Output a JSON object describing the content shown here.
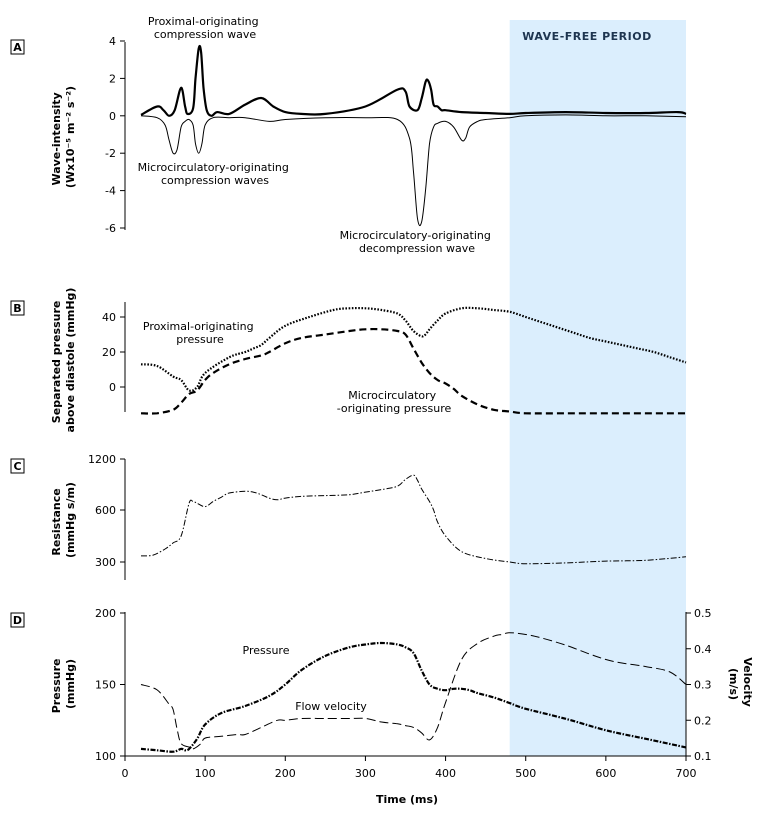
{
  "wave_free_period": {
    "label": "WAVE-FREE PERIOD",
    "start_ms": 480,
    "end_ms": 700,
    "color": "#dbeefd"
  },
  "x_axis": {
    "label": "Time (ms)",
    "ticks": [
      "0",
      "100",
      "200",
      "300",
      "400",
      "500",
      "600",
      "700"
    ],
    "range": [
      0,
      700
    ]
  },
  "panels": {
    "A": {
      "letter": "A",
      "ylabel_line1": "Wave-intensity",
      "ylabel_line2": "(Wx10⁻⁵ m⁻² s⁻²)",
      "ticks": [
        "4",
        "2",
        "0",
        "-2",
        "-4",
        "-6"
      ],
      "annotations": {
        "proximal_wave_1": "Proximal-originating",
        "proximal_wave_2": "compression wave",
        "micro_compression_1": "Microcirculatory-originating",
        "micro_compression_2": "compression waves",
        "micro_decompression_1": "Microcirculatory-originating",
        "micro_decompression_2": "decompression wave"
      }
    },
    "B": {
      "letter": "B",
      "ylabel_line1": "Separated pressure",
      "ylabel_line2": "above diastole (mmHg)",
      "ticks": [
        "40",
        "20",
        "0"
      ],
      "annotations": {
        "proximal_1": "Proximal-originating",
        "proximal_2": "pressure",
        "micro_1": "Microcirculatory",
        "micro_2": "-originating pressure"
      }
    },
    "C": {
      "letter": "C",
      "ylabel_line1": "Resistance",
      "ylabel_line2": "(mmHg s/m)",
      "ticks": [
        "1200",
        "600",
        "300"
      ]
    },
    "D": {
      "letter": "D",
      "ylabel_line1": "Pressure",
      "ylabel_line2": "(mmHg)",
      "ticks": [
        "200",
        "150",
        "100"
      ],
      "right_ylabel_line1": "Velocity",
      "right_ylabel_line2": "(m/s)",
      "right_ticks": [
        "0.5",
        "0.4",
        "0.3",
        "0.2",
        "0.1"
      ],
      "annotations": {
        "pressure": "Pressure",
        "velocity": "Flow velocity"
      }
    }
  },
  "chart_data": [
    {
      "panel": "A",
      "type": "line",
      "xlabel": "Time (ms)",
      "ylabel": "Wave-intensity (Wx10⁻⁵ m⁻² s⁻²)",
      "xlim": [
        0,
        700
      ],
      "ylim": [
        -6,
        4
      ],
      "series": [
        {
          "role": "forward",
          "x": [
            20,
            40,
            48,
            55,
            62,
            70,
            75,
            78,
            85,
            88,
            92,
            95,
            98,
            102,
            108,
            115,
            130,
            150,
            170,
            185,
            200,
            220,
            250,
            300,
            340,
            350,
            355,
            365,
            370,
            375,
            378,
            382,
            385,
            390,
            395,
            400,
            420,
            450,
            480,
            500,
            550,
            600,
            650,
            690,
            700
          ],
          "y": [
            0.05,
            0.5,
            0.3,
            0.0,
            0.3,
            1.5,
            0.5,
            0.1,
            0.4,
            2.0,
            3.6,
            3.4,
            1.5,
            0.3,
            0.0,
            0.2,
            0.1,
            0.6,
            0.95,
            0.5,
            0.2,
            0.1,
            0.1,
            0.5,
            1.4,
            1.3,
            0.5,
            0.3,
            0.9,
            1.8,
            1.9,
            1.4,
            0.6,
            0.5,
            0.3,
            0.3,
            0.2,
            0.15,
            0.1,
            0.15,
            0.2,
            0.15,
            0.15,
            0.2,
            0.1
          ]
        },
        {
          "role": "backward",
          "x": [
            20,
            40,
            50,
            55,
            60,
            65,
            70,
            75,
            80,
            85,
            88,
            92,
            96,
            100,
            110,
            130,
            150,
            180,
            200,
            250,
            300,
            340,
            355,
            360,
            365,
            370,
            375,
            380,
            385,
            390,
            400,
            410,
            420,
            425,
            430,
            440,
            450,
            480,
            500,
            550,
            600,
            650,
            700
          ],
          "y": [
            0,
            -0.1,
            -0.5,
            -1.3,
            -2.0,
            -1.8,
            -0.6,
            -0.3,
            -0.2,
            -0.5,
            -1.5,
            -2.0,
            -1.5,
            -0.5,
            -0.1,
            -0.1,
            -0.1,
            -0.3,
            -0.2,
            -0.1,
            -0.1,
            -0.2,
            -1.2,
            -3.0,
            -5.5,
            -5.7,
            -4.0,
            -1.5,
            -0.6,
            -0.4,
            -0.3,
            -0.6,
            -1.3,
            -1.2,
            -0.6,
            -0.3,
            -0.2,
            -0.1,
            0,
            0.05,
            0,
            0,
            -0.05
          ]
        }
      ]
    },
    {
      "panel": "B",
      "type": "line",
      "ylabel": "Separated pressure above diastole (mmHg)",
      "xlim": [
        0,
        700
      ],
      "ylim": [
        -14,
        48
      ],
      "series": [
        {
          "role": "proximal",
          "x": [
            20,
            40,
            60,
            70,
            80,
            90,
            100,
            130,
            150,
            160,
            170,
            180,
            200,
            230,
            260,
            280,
            300,
            320,
            340,
            350,
            360,
            370,
            375,
            380,
            390,
            400,
            420,
            440,
            460,
            480,
            500,
            520,
            540,
            560,
            580,
            600,
            620,
            640,
            660,
            680,
            700
          ],
          "y": [
            13,
            12,
            6,
            4,
            -2,
            0,
            8,
            17,
            20,
            22,
            24,
            28,
            35,
            40,
            44,
            45,
            45,
            44,
            42,
            38,
            32,
            29,
            30,
            33,
            38,
            42,
            45,
            45,
            44,
            43,
            40,
            37,
            34,
            31,
            28,
            26,
            24,
            22,
            20,
            17,
            14
          ]
        },
        {
          "role": "microcirculatory",
          "x": [
            20,
            40,
            60,
            70,
            80,
            90,
            100,
            110,
            130,
            150,
            170,
            180,
            200,
            220,
            250,
            280,
            300,
            320,
            340,
            350,
            360,
            370,
            380,
            390,
            400,
            410,
            420,
            440,
            460,
            480,
            500,
            550,
            600,
            650,
            700
          ],
          "y": [
            -15,
            -15,
            -13,
            -9,
            -4,
            -2,
            4,
            8,
            13,
            16,
            18,
            20,
            25,
            28,
            30,
            32,
            33,
            33,
            32,
            30,
            22,
            14,
            8,
            4,
            2,
            -1,
            -5,
            -10,
            -13,
            -14,
            -15,
            -15,
            -15,
            -15,
            -15
          ]
        }
      ]
    },
    {
      "panel": "C",
      "type": "line",
      "ylabel": "Resistance (mmHg s/m)",
      "xlim": [
        0,
        700
      ],
      "ylim": [
        300,
        1200
      ],
      "series": [
        {
          "role": "resistance",
          "x": [
            20,
            35,
            50,
            60,
            70,
            80,
            85,
            90,
            100,
            110,
            120,
            130,
            150,
            160,
            170,
            180,
            190,
            200,
            220,
            250,
            280,
            300,
            320,
            340,
            350,
            360,
            365,
            370,
            380,
            385,
            390,
            400,
            420,
            450,
            480,
            500,
            550,
            600,
            650,
            700
          ],
          "y": [
            335,
            340,
            375,
            410,
            450,
            680,
            700,
            680,
            640,
            700,
            750,
            800,
            820,
            810,
            780,
            740,
            720,
            740,
            760,
            770,
            780,
            810,
            840,
            880,
            960,
            1010,
            950,
            850,
            700,
            600,
            530,
            450,
            360,
            320,
            300,
            290,
            295,
            305,
            310,
            330
          ]
        }
      ]
    },
    {
      "panel": "D",
      "type": "line",
      "xlabel": "Time (ms)",
      "ylabel": "Pressure (mmHg)",
      "ylabel_right": "Velocity (m/s)",
      "xlim": [
        0,
        700
      ],
      "ylim": [
        100,
        200
      ],
      "ylim_right": [
        0.1,
        0.5
      ],
      "series": [
        {
          "role": "pressure",
          "axis": "left",
          "x": [
            20,
            40,
            60,
            70,
            75,
            80,
            90,
            100,
            120,
            150,
            180,
            200,
            220,
            250,
            280,
            300,
            320,
            340,
            350,
            360,
            370,
            380,
            390,
            400,
            410,
            420,
            430,
            440,
            460,
            480,
            500,
            550,
            600,
            650,
            700
          ],
          "y": [
            105,
            104,
            103,
            105,
            104,
            105,
            112,
            122,
            130,
            135,
            142,
            150,
            160,
            170,
            176,
            178,
            179,
            178,
            176,
            172,
            160,
            150,
            147,
            146,
            147,
            147,
            146,
            144,
            141,
            137,
            133,
            126,
            118,
            112,
            106
          ]
        },
        {
          "role": "velocity",
          "axis": "right",
          "x": [
            20,
            40,
            55,
            60,
            65,
            70,
            80,
            85,
            95,
            100,
            120,
            140,
            150,
            170,
            190,
            200,
            220,
            250,
            280,
            300,
            320,
            340,
            350,
            360,
            370,
            380,
            390,
            400,
            420,
            440,
            460,
            470,
            480,
            500,
            520,
            550,
            580,
            600,
            620,
            650,
            680,
            700
          ],
          "y": [
            0.3,
            0.285,
            0.245,
            0.23,
            0.175,
            0.135,
            0.125,
            0.12,
            0.135,
            0.15,
            0.155,
            0.16,
            0.16,
            0.18,
            0.2,
            0.2,
            0.205,
            0.205,
            0.205,
            0.205,
            0.195,
            0.19,
            0.185,
            0.18,
            0.165,
            0.145,
            0.18,
            0.25,
            0.37,
            0.415,
            0.435,
            0.44,
            0.445,
            0.44,
            0.43,
            0.41,
            0.385,
            0.37,
            0.36,
            0.35,
            0.335,
            0.3
          ]
        }
      ]
    }
  ]
}
